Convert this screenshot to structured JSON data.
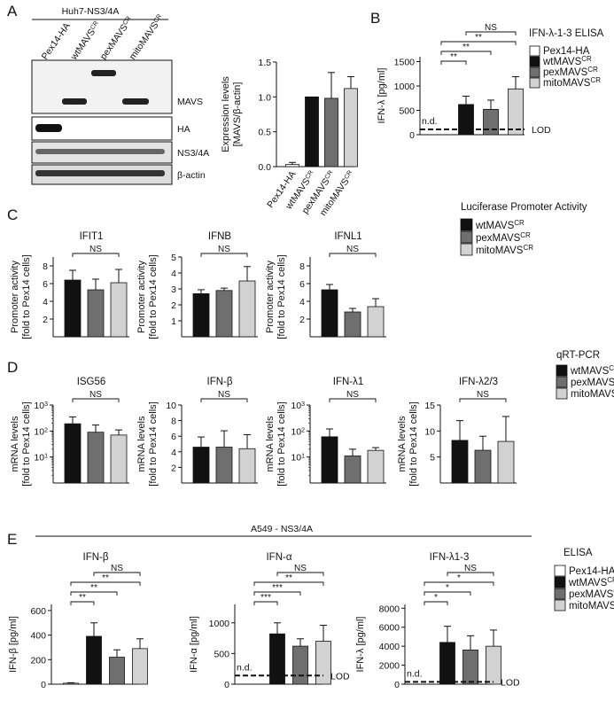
{
  "colors": {
    "pex": "#ffffff",
    "wt": "#111111",
    "pexmavs": "#6f6f6f",
    "mito": "#d2d2d2"
  },
  "legend_labels": [
    "Pex14-HA",
    "wtMAVS",
    "pexMAVS",
    "mitoMAVS"
  ],
  "legend_sup": "CR",
  "panelA": {
    "letter": "A",
    "cell_line": "Huh7-NS3/4A",
    "lane_labels": [
      "Pex14-HA",
      "wtMAVS",
      "pexMAVS",
      "mitoMAVS"
    ],
    "blot_labels": [
      "MAVS",
      "HA",
      "NS3/4A",
      "β-actin"
    ]
  },
  "panelB": {
    "letter": "B",
    "title": "IFN-λ-1-3 ELISA",
    "nd": "n.d.",
    "lod": "LOD"
  },
  "panelC": {
    "letter": "C",
    "title": "Luciferase Promoter Activity"
  },
  "panelD": {
    "letter": "D",
    "title": "qRT-PCR"
  },
  "panelE": {
    "letter": "E",
    "cell_line": "A549 - NS3/4A",
    "title": "ELISA",
    "nd": "n.d.",
    "lod": "LOD"
  },
  "chart_data": [
    {
      "id": "A-quant",
      "type": "bar",
      "title": "",
      "ylabel": "Expression levels [MAVS/β-actin]",
      "ylim": [
        0,
        1.5
      ],
      "yticks": [
        "0.0",
        "0.5",
        "1.0",
        "1.5"
      ],
      "categories": [
        "Pex14-HA",
        "wtMAVS",
        "pexMAVS",
        "mitoMAVS"
      ],
      "values": [
        0.03,
        1.0,
        0.98,
        1.12
      ],
      "errors": [
        0.03,
        0,
        0.37,
        0.17
      ]
    },
    {
      "id": "B",
      "type": "bar",
      "title": "",
      "ylabel": "IFN-λ [pg/ml]",
      "ylim": [
        0,
        1600
      ],
      "yticks": [
        "0",
        "500",
        "1000",
        "1500"
      ],
      "categories": [
        "Pex14-HA",
        "wtMAVS",
        "pexMAVS",
        "mitoMAVS"
      ],
      "values": [
        0,
        620,
        520,
        940
      ],
      "errors": [
        0,
        170,
        190,
        250
      ],
      "lod": 110,
      "nd_label": "n.d.",
      "sig": [
        {
          "from": 0,
          "to": 1,
          "label": "**"
        },
        {
          "from": 0,
          "to": 2,
          "label": "**"
        },
        {
          "from": 0,
          "to": 3,
          "label": "**"
        },
        {
          "from": 1,
          "to": 3,
          "label": "NS"
        }
      ]
    },
    {
      "id": "C-IFIT1",
      "type": "bar",
      "title": "IFIT1",
      "ylabel": "Promoter activity [fold to Pex14 cells]",
      "ylim": [
        0,
        9
      ],
      "yticks": [
        "2",
        "4",
        "6",
        "8"
      ],
      "categories": [
        "wtMAVS",
        "pexMAVS",
        "mitoMAVS"
      ],
      "values": [
        6.4,
        5.3,
        6.1
      ],
      "errors": [
        1.1,
        1.2,
        1.5
      ],
      "sig": [
        {
          "from": 0,
          "to": 2,
          "label": "NS"
        }
      ]
    },
    {
      "id": "C-IFNB",
      "type": "bar",
      "title": "IFNB",
      "ylabel": "Promoter activity [fold to Pex14 cells]",
      "ylim": [
        0,
        5
      ],
      "yticks": [
        "1",
        "2",
        "3",
        "4",
        "5"
      ],
      "categories": [
        "wtMAVS",
        "pexMAVS",
        "mitoMAVS"
      ],
      "values": [
        2.7,
        2.9,
        3.5
      ],
      "errors": [
        0.25,
        0.15,
        0.9
      ],
      "sig": [
        {
          "from": 0,
          "to": 2,
          "label": "NS"
        }
      ]
    },
    {
      "id": "C-IFNL1",
      "type": "bar",
      "title": "IFNL1",
      "ylabel": "Promoter activity [fold to Pex14 cells]",
      "ylim": [
        0,
        9
      ],
      "yticks": [
        "2",
        "4",
        "6",
        "8"
      ],
      "categories": [
        "wtMAVS",
        "pexMAVS",
        "mitoMAVS"
      ],
      "values": [
        5.3,
        2.8,
        3.4
      ],
      "errors": [
        0.6,
        0.4,
        0.9
      ],
      "sig": [
        {
          "from": 0,
          "to": 2,
          "label": "NS"
        }
      ]
    },
    {
      "id": "D-ISG56",
      "type": "bar",
      "title": "ISG56",
      "log": true,
      "ylabel": "mRNA levels [fold to Pex14 cells]",
      "ylim": [
        1,
        1000
      ],
      "yticks": [
        "10^1",
        "10^2",
        "10^3"
      ],
      "categories": [
        "wtMAVS",
        "pexMAVS",
        "mitoMAVS"
      ],
      "values": [
        190,
        90,
        70
      ],
      "errors_upper": [
        350,
        170,
        110
      ],
      "sig": [
        {
          "from": 0,
          "to": 2,
          "label": "NS"
        }
      ]
    },
    {
      "id": "D-IFNb",
      "type": "bar",
      "title": "IFN-β",
      "ylabel": "mRNA levels [fold to Pex14 cells]",
      "ylim": [
        0,
        10
      ],
      "yticks": [
        "2",
        "4",
        "6",
        "8",
        "10"
      ],
      "categories": [
        "wtMAVS",
        "pexMAVS",
        "mitoMAVS"
      ],
      "values": [
        4.6,
        4.6,
        4.4
      ],
      "errors": [
        1.3,
        2.1,
        1.8
      ],
      "sig": [
        {
          "from": 0,
          "to": 2,
          "label": "NS"
        }
      ]
    },
    {
      "id": "D-IFNl1",
      "type": "bar",
      "title": "IFN-λ1",
      "log": true,
      "ylabel": "mRNA levels [fold to Pex14 cells]",
      "ylim": [
        1,
        1000
      ],
      "yticks": [
        "10^1",
        "10^2",
        "10^3"
      ],
      "categories": [
        "wtMAVS",
        "pexMAVS",
        "mitoMAVS"
      ],
      "values": [
        60,
        11,
        18
      ],
      "errors_upper": [
        120,
        20,
        23
      ],
      "sig": [
        {
          "from": 0,
          "to": 2,
          "label": "NS"
        }
      ]
    },
    {
      "id": "D-IFNl23",
      "type": "bar",
      "title": "IFN-λ2/3",
      "ylabel": "mRNA levels [fold to Pex14 cells]",
      "ylim": [
        0,
        15
      ],
      "yticks": [
        "5",
        "10",
        "15"
      ],
      "categories": [
        "wtMAVS",
        "pexMAVS",
        "mitoMAVS"
      ],
      "values": [
        8.2,
        6.3,
        8.0
      ],
      "errors": [
        3.8,
        2.7,
        4.8
      ],
      "sig": [
        {
          "from": 0,
          "to": 2,
          "label": "NS"
        }
      ]
    },
    {
      "id": "E-IFNb",
      "type": "bar",
      "title": "IFN-β",
      "ylabel": "IFN-β [pg/ml]",
      "ylim": [
        0,
        650
      ],
      "yticks": [
        "0",
        "200",
        "400",
        "600"
      ],
      "categories": [
        "Pex14-HA",
        "wtMAVS",
        "pexMAVS",
        "mitoMAVS"
      ],
      "values": [
        8,
        390,
        220,
        290
      ],
      "errors": [
        4,
        110,
        60,
        80
      ],
      "sig": [
        {
          "from": 0,
          "to": 1,
          "label": "**"
        },
        {
          "from": 0,
          "to": 2,
          "label": "**"
        },
        {
          "from": 0,
          "to": 3,
          "label": "**"
        },
        {
          "from": 1,
          "to": 3,
          "label": "NS"
        }
      ]
    },
    {
      "id": "E-IFNa",
      "type": "bar",
      "title": "IFN-α",
      "ylabel": "IFN-α [pg/ml]",
      "ylim": [
        0,
        1300
      ],
      "yticks": [
        "0",
        "500",
        "1000"
      ],
      "categories": [
        "Pex14-HA",
        "wtMAVS",
        "pexMAVS",
        "mitoMAVS"
      ],
      "values": [
        0,
        820,
        620,
        700
      ],
      "errors": [
        0,
        180,
        120,
        260
      ],
      "lod": 140,
      "nd_label": "n.d.",
      "sig": [
        {
          "from": 0,
          "to": 1,
          "label": "***"
        },
        {
          "from": 0,
          "to": 2,
          "label": "***"
        },
        {
          "from": 0,
          "to": 3,
          "label": "**"
        },
        {
          "from": 1,
          "to": 3,
          "label": "NS"
        }
      ]
    },
    {
      "id": "E-IFNl",
      "type": "bar",
      "title": "IFN-λ1-3",
      "ylabel": "IFN-λ [pg/ml]",
      "ylim": [
        0,
        8400
      ],
      "yticks": [
        "0",
        "2000",
        "4000",
        "6000",
        "8000"
      ],
      "categories": [
        "Pex14-HA",
        "wtMAVS",
        "pexMAVS",
        "mitoMAVS"
      ],
      "values": [
        0,
        4400,
        3600,
        4000
      ],
      "errors": [
        0,
        1700,
        1500,
        1700
      ],
      "lod": 250,
      "nd_label": "n.d.",
      "sig": [
        {
          "from": 0,
          "to": 1,
          "label": "*"
        },
        {
          "from": 0,
          "to": 2,
          "label": "*"
        },
        {
          "from": 0,
          "to": 3,
          "label": "*"
        },
        {
          "from": 1,
          "to": 3,
          "label": "NS"
        }
      ]
    }
  ]
}
